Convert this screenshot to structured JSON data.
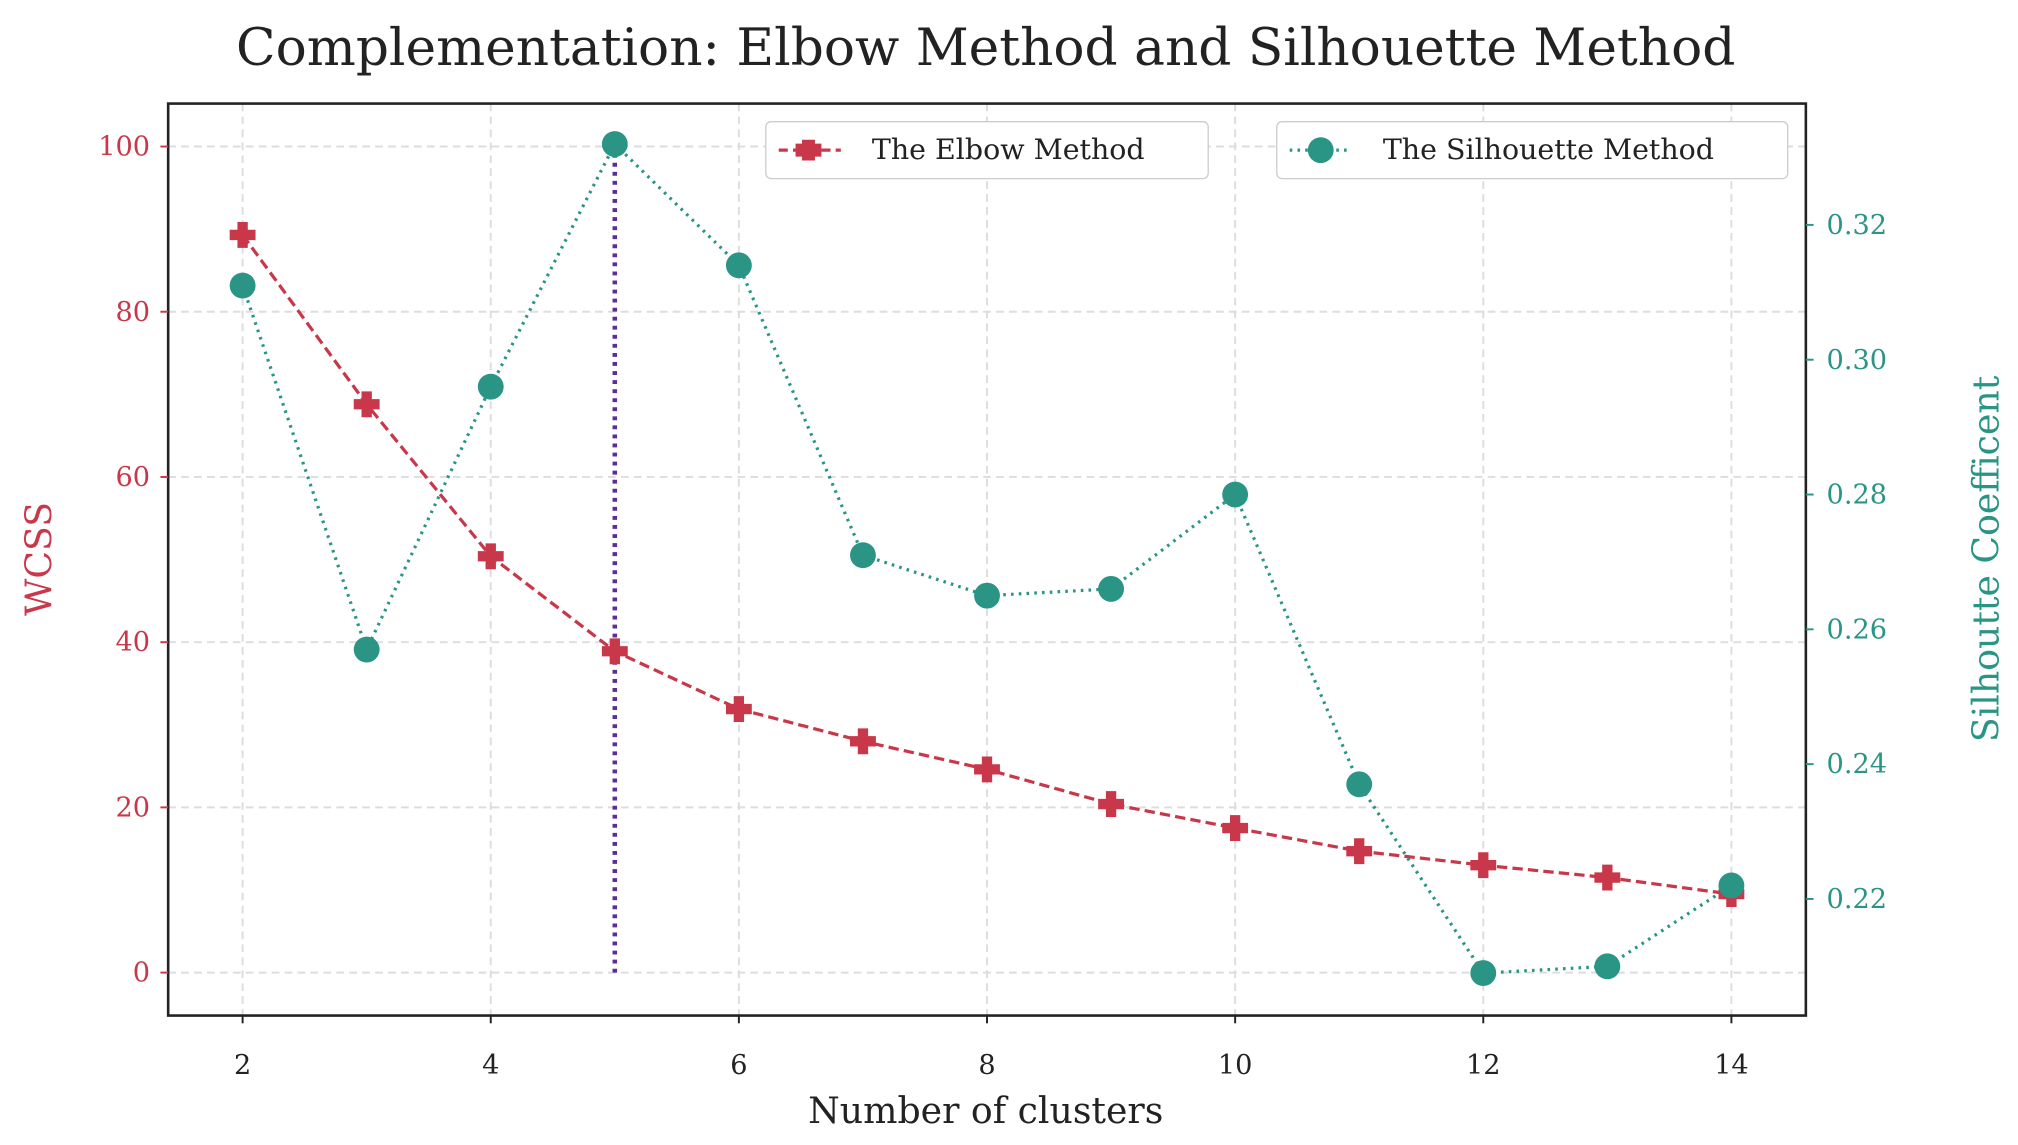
{
  "chart_data": {
    "type": "line",
    "title": "Complementation: Elbow Method and Silhouette Method",
    "xlabel": "Number of clusters",
    "ylabel": "WCSS",
    "y2label": "Silhoutte Coefficent",
    "x": [
      2,
      3,
      4,
      5,
      6,
      7,
      8,
      9,
      10,
      11,
      12,
      13,
      14
    ],
    "xticks": [
      2,
      4,
      6,
      8,
      10,
      12,
      14
    ],
    "xlim": [
      1.4,
      14.6
    ],
    "ylim": [
      -5.2,
      105.2
    ],
    "yticks": [
      0,
      20,
      40,
      60,
      80,
      100
    ],
    "y2lim": [
      0.2027,
      0.338
    ],
    "y2ticks": [
      "0.22",
      "0.24",
      "0.26",
      "0.28",
      "0.30",
      "0.32"
    ],
    "grid": true,
    "series": [
      {
        "name": "The Elbow Method",
        "axis": "left",
        "color": "#c8384a",
        "linestyle": "dashed",
        "marker": "plus",
        "values": [
          89.3,
          68.8,
          50.4,
          38.9,
          31.9,
          28.0,
          24.6,
          20.4,
          17.5,
          14.7,
          13.0,
          11.5,
          9.5
        ]
      },
      {
        "name": "The Silhouette Method",
        "axis": "right",
        "color": "#2a9485",
        "linestyle": "dotted",
        "marker": "circle",
        "values": [
          0.311,
          0.257,
          0.296,
          0.332,
          0.314,
          0.271,
          0.265,
          0.266,
          0.28,
          0.237,
          0.209,
          0.21,
          0.222
        ]
      }
    ],
    "annotations": [
      {
        "type": "vline",
        "x": 5,
        "from": 0,
        "to": 100,
        "color": "#5b2d9c",
        "linestyle": "dotted"
      }
    ],
    "legend": "top-right",
    "colors": {
      "left_axis": "#c8384a",
      "right_axis": "#2a9485"
    }
  }
}
